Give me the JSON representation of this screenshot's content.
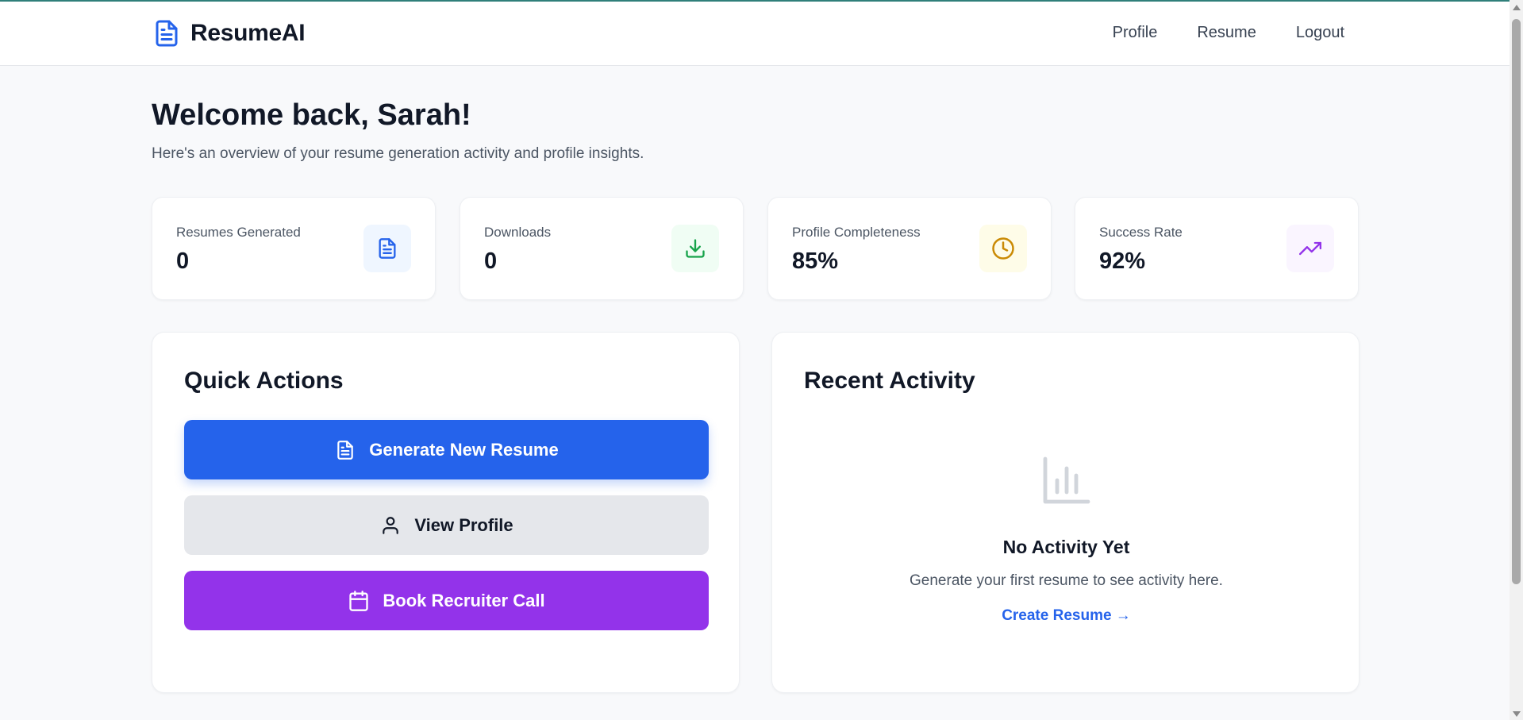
{
  "app": {
    "name": "ResumeAI",
    "accent_color": "#2563eb",
    "topline_color": "#2f7f7a"
  },
  "nav": {
    "links": [
      {
        "label": "Profile"
      },
      {
        "label": "Resume"
      },
      {
        "label": "Logout"
      }
    ]
  },
  "header": {
    "welcome": "Welcome back, Sarah!",
    "subtitle": "Here's an overview of your resume generation activity and profile insights."
  },
  "stats": [
    {
      "label": "Resumes Generated",
      "value": "0",
      "icon": "document-icon",
      "icon_color": "#2563eb",
      "icon_bg": "#eff6ff"
    },
    {
      "label": "Downloads",
      "value": "0",
      "icon": "download-icon",
      "icon_color": "#16a34a",
      "icon_bg": "#f0fdf4"
    },
    {
      "label": "Profile Completeness",
      "value": "85%",
      "icon": "clock-icon",
      "icon_color": "#ca8a04",
      "icon_bg": "#fefce8"
    },
    {
      "label": "Success Rate",
      "value": "92%",
      "icon": "trending-up-icon",
      "icon_color": "#9333ea",
      "icon_bg": "#faf5ff"
    }
  ],
  "quick_actions": {
    "title": "Quick Actions",
    "buttons": [
      {
        "label": "Generate New Resume",
        "icon": "document-icon",
        "color": "#2563eb"
      },
      {
        "label": "View Profile",
        "icon": "user-icon",
        "color": "#e5e7eb"
      },
      {
        "label": "Book Recruiter Call",
        "icon": "calendar-icon",
        "color": "#9333ea"
      }
    ]
  },
  "recent_activity": {
    "title": "Recent Activity",
    "empty_icon": "bar-chart-icon",
    "empty_title": "No Activity Yet",
    "empty_text": "Generate your first resume to see activity here.",
    "empty_link": "Create Resume →"
  }
}
